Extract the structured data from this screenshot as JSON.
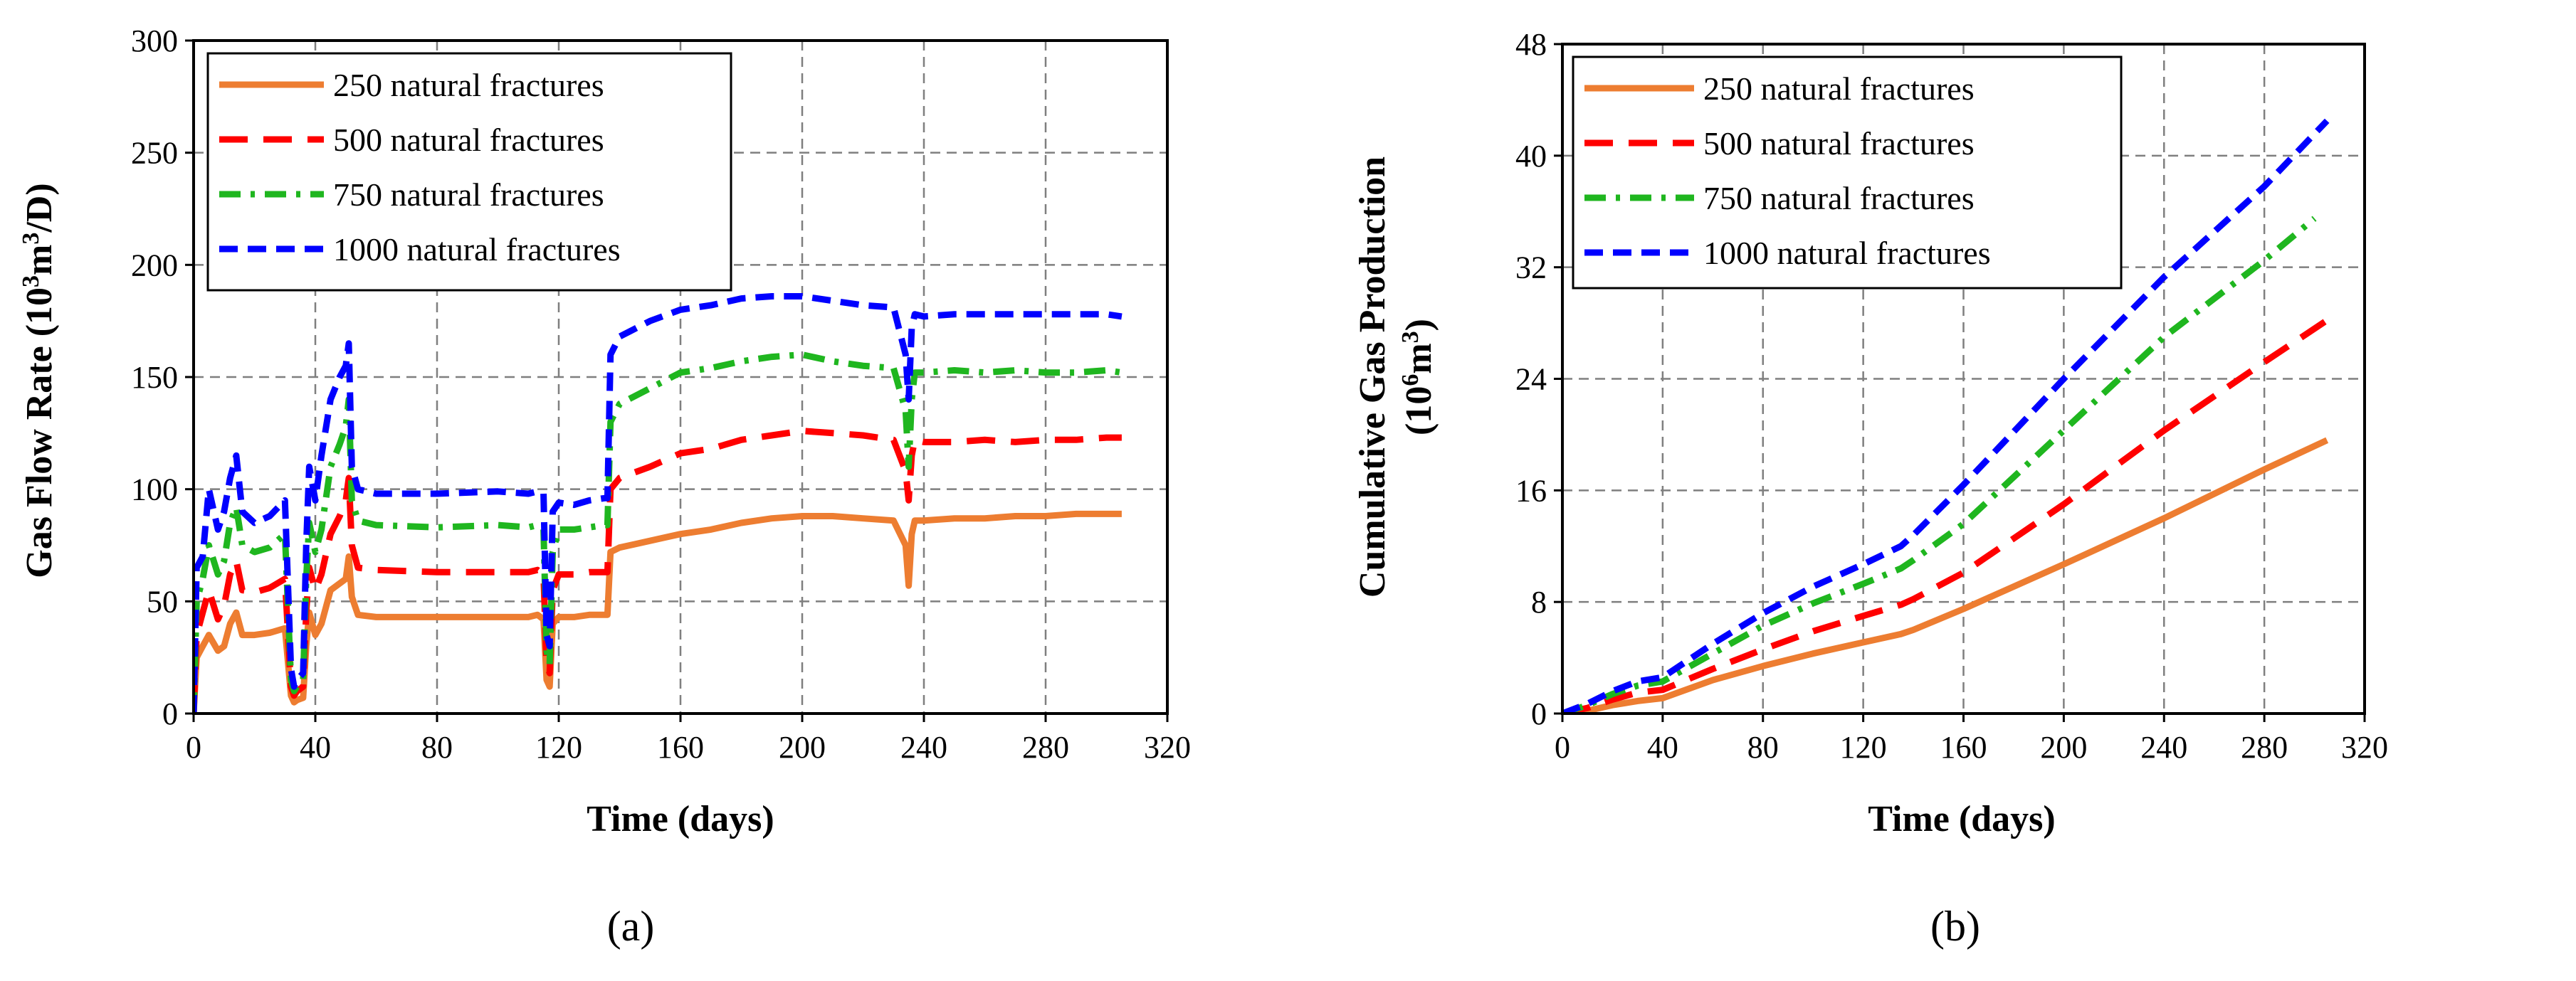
{
  "chart_data": [
    {
      "type": "line",
      "panel_label": "(a)",
      "xlabel": "Time (days)",
      "ylabel_main": "Gas Flow Rate (10",
      "ylabel_sup": "3",
      "ylabel_mid": "m",
      "ylabel_sup2": "3",
      "ylabel_end": "/D)",
      "xlim": [
        0,
        320
      ],
      "ylim": [
        0,
        300
      ],
      "xticks": [
        0,
        40,
        80,
        120,
        160,
        200,
        240,
        280,
        320
      ],
      "yticks": [
        0,
        50,
        100,
        150,
        200,
        250,
        300
      ],
      "grid": true,
      "legend_position": "top-left",
      "series": [
        {
          "name": "250 natural fractures",
          "color": "#ed7d31",
          "dash": "solid",
          "x": [
            0,
            1,
            3,
            5,
            8,
            10,
            12,
            14,
            16,
            20,
            25,
            30,
            32,
            33,
            34,
            36,
            37,
            38,
            40,
            42,
            45,
            48,
            50,
            51,
            52,
            54,
            60,
            80,
            100,
            110,
            113,
            115,
            116,
            117,
            118,
            120,
            125,
            130,
            135,
            136,
            137,
            140,
            150,
            160,
            170,
            180,
            190,
            200,
            210,
            220,
            230,
            234,
            235,
            236,
            237,
            240,
            250,
            260,
            270,
            280,
            290,
            300,
            305
          ],
          "y": [
            0,
            25,
            30,
            35,
            28,
            30,
            40,
            45,
            35,
            35,
            36,
            38,
            8,
            5,
            6,
            7,
            30,
            45,
            35,
            40,
            55,
            58,
            60,
            70,
            52,
            44,
            43,
            43,
            43,
            43,
            44,
            42,
            15,
            12,
            40,
            43,
            43,
            44,
            44,
            44,
            72,
            74,
            77,
            80,
            82,
            85,
            87,
            88,
            88,
            87,
            86,
            75,
            57,
            80,
            86,
            86,
            87,
            87,
            88,
            88,
            89,
            89,
            89
          ]
        },
        {
          "name": "500 natural fractures",
          "color": "#ff0000",
          "dash": "long-dash",
          "x": [
            0,
            1,
            3,
            5,
            8,
            10,
            12,
            14,
            16,
            20,
            25,
            30,
            32,
            33,
            34,
            36,
            37,
            38,
            40,
            42,
            45,
            48,
            50,
            51,
            52,
            54,
            60,
            80,
            100,
            110,
            113,
            115,
            116,
            117,
            118,
            120,
            125,
            130,
            135,
            136,
            137,
            140,
            150,
            160,
            170,
            180,
            190,
            200,
            210,
            220,
            230,
            234,
            235,
            236,
            237,
            240,
            250,
            260,
            270,
            280,
            290,
            300,
            305
          ],
          "y": [
            0,
            35,
            45,
            55,
            42,
            48,
            62,
            68,
            55,
            54,
            56,
            60,
            12,
            8,
            10,
            12,
            45,
            65,
            55,
            62,
            80,
            88,
            95,
            105,
            75,
            65,
            64,
            63,
            63,
            63,
            64,
            62,
            22,
            18,
            55,
            62,
            62,
            63,
            63,
            63,
            100,
            105,
            110,
            116,
            118,
            122,
            124,
            126,
            125,
            124,
            122,
            108,
            95,
            115,
            122,
            121,
            121,
            122,
            121,
            122,
            122,
            123,
            123
          ]
        },
        {
          "name": "750 natural fractures",
          "color": "#1fb61f",
          "dash": "dash-dot",
          "x": [
            0,
            1,
            3,
            5,
            8,
            10,
            12,
            14,
            16,
            20,
            25,
            30,
            32,
            33,
            34,
            36,
            37,
            38,
            40,
            42,
            45,
            48,
            50,
            51,
            52,
            54,
            60,
            80,
            100,
            110,
            113,
            115,
            116,
            117,
            118,
            120,
            125,
            130,
            135,
            136,
            137,
            140,
            150,
            160,
            170,
            180,
            190,
            200,
            210,
            220,
            230,
            234,
            235,
            236,
            237,
            240,
            250,
            260,
            270,
            280,
            290,
            300,
            305
          ],
          "y": [
            0,
            50,
            60,
            75,
            62,
            68,
            85,
            92,
            75,
            72,
            74,
            80,
            15,
            10,
            12,
            15,
            60,
            85,
            72,
            82,
            110,
            120,
            128,
            140,
            95,
            86,
            84,
            83,
            84,
            83,
            84,
            82,
            28,
            22,
            72,
            82,
            82,
            83,
            84,
            84,
            130,
            138,
            145,
            152,
            154,
            157,
            159,
            160,
            157,
            155,
            154,
            135,
            110,
            140,
            152,
            152,
            153,
            152,
            153,
            152,
            152,
            153,
            152
          ]
        },
        {
          "name": "1000 natural fractures",
          "color": "#0000ff",
          "dash": "dash",
          "x": [
            0,
            1,
            3,
            5,
            8,
            10,
            12,
            14,
            16,
            20,
            25,
            30,
            32,
            33,
            34,
            36,
            37,
            38,
            40,
            42,
            45,
            48,
            50,
            51,
            52,
            54,
            60,
            80,
            100,
            110,
            113,
            115,
            116,
            117,
            118,
            120,
            125,
            130,
            135,
            136,
            137,
            140,
            150,
            160,
            170,
            180,
            190,
            200,
            210,
            220,
            230,
            234,
            235,
            236,
            237,
            240,
            250,
            260,
            270,
            280,
            290,
            300,
            305
          ],
          "y": [
            0,
            65,
            70,
            100,
            82,
            90,
            105,
            115,
            90,
            85,
            88,
            95,
            20,
            12,
            15,
            18,
            75,
            110,
            95,
            115,
            140,
            150,
            155,
            165,
            110,
            100,
            98,
            98,
            99,
            98,
            99,
            98,
            35,
            30,
            90,
            94,
            93,
            95,
            96,
            96,
            160,
            168,
            175,
            180,
            182,
            185,
            186,
            186,
            184,
            182,
            181,
            160,
            140,
            172,
            178,
            177,
            178,
            178,
            178,
            178,
            178,
            178,
            177
          ]
        }
      ]
    },
    {
      "type": "line",
      "panel_label": "(b)",
      "xlabel": "Time (days)",
      "ylabel_line1": "Cumulative Gas Production",
      "ylabel_line2_main": "(10",
      "ylabel_line2_sup": "6",
      "ylabel_line2_mid": "m",
      "ylabel_line2_sup2": "3",
      "ylabel_line2_end": ")",
      "xlim": [
        0,
        320
      ],
      "ylim": [
        0,
        48
      ],
      "xticks": [
        0,
        40,
        80,
        120,
        160,
        200,
        240,
        280,
        320
      ],
      "yticks": [
        0,
        8,
        16,
        24,
        32,
        40,
        48
      ],
      "grid": true,
      "legend_position": "top-left",
      "series": [
        {
          "name": "250 natural fractures",
          "color": "#ed7d31",
          "dash": "solid",
          "x": [
            0,
            10,
            20,
            30,
            40,
            60,
            80,
            100,
            120,
            135,
            140,
            160,
            200,
            240,
            280,
            305
          ],
          "y": [
            0,
            0.2,
            0.6,
            0.9,
            1.1,
            2.4,
            3.4,
            4.3,
            5.1,
            5.7,
            6.0,
            7.5,
            10.7,
            14.0,
            17.5,
            19.6
          ]
        },
        {
          "name": "500 natural fractures",
          "color": "#ff0000",
          "dash": "long-dash",
          "x": [
            0,
            10,
            20,
            30,
            40,
            60,
            80,
            100,
            120,
            135,
            140,
            160,
            200,
            240,
            280,
            305
          ],
          "y": [
            0,
            0.4,
            1.0,
            1.5,
            1.7,
            3.2,
            4.6,
            5.9,
            7.0,
            7.8,
            8.2,
            10.1,
            15.0,
            20.3,
            25.2,
            28.2
          ]
        },
        {
          "name": "750 natural fractures",
          "color": "#1fb61f",
          "dash": "dash-dot",
          "x": [
            0,
            10,
            20,
            30,
            40,
            60,
            80,
            100,
            120,
            135,
            140,
            160,
            200,
            240,
            280,
            300
          ],
          "y": [
            0,
            0.6,
            1.4,
            2.0,
            2.3,
            4.3,
            6.3,
            7.9,
            9.3,
            10.4,
            11.0,
            13.6,
            20.3,
            27.0,
            32.5,
            35.5
          ]
        },
        {
          "name": "1000 natural fractures",
          "color": "#0000ff",
          "dash": "dash",
          "x": [
            0,
            10,
            20,
            30,
            40,
            60,
            80,
            100,
            120,
            135,
            140,
            160,
            200,
            240,
            280,
            305
          ],
          "y": [
            0,
            0.7,
            1.6,
            2.3,
            2.6,
            5.0,
            7.2,
            9.1,
            10.7,
            12.0,
            12.8,
            16.4,
            24.0,
            31.3,
            37.8,
            42.5
          ]
        }
      ]
    }
  ]
}
